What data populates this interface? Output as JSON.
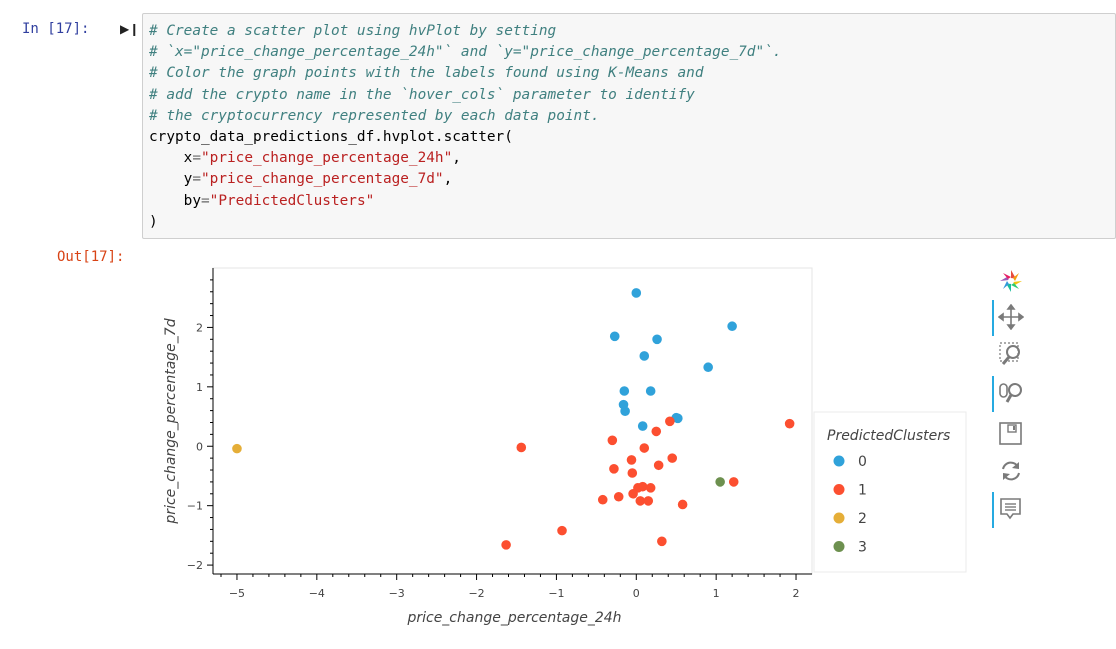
{
  "cell": {
    "in_prompt": "In [17]:",
    "out_prompt": "Out[17]:",
    "code_lines": [
      [
        {
          "t": "# Create a scatter plot using hvPlot by setting",
          "c": "cm"
        }
      ],
      [
        {
          "t": "# `x=\"price_change_percentage_24h\"` and `y=\"price_change_percentage_7d\"`.",
          "c": "cm"
        }
      ],
      [
        {
          "t": "# Color the graph points with the labels found using K-Means and",
          "c": "cm"
        }
      ],
      [
        {
          "t": "# add the crypto name in the `hover_cols` parameter to identify",
          "c": "cm"
        }
      ],
      [
        {
          "t": "# the cryptocurrency represented by each data point.",
          "c": "cm"
        }
      ],
      [
        {
          "t": "crypto_data_predictions_df.hvplot.scatter(",
          "c": ""
        }
      ],
      [
        {
          "t": "    x",
          "c": ""
        },
        {
          "t": "=",
          "c": "op"
        },
        {
          "t": "\"price_change_percentage_24h\"",
          "c": "st"
        },
        {
          "t": ",",
          "c": ""
        }
      ],
      [
        {
          "t": "    y",
          "c": ""
        },
        {
          "t": "=",
          "c": "op"
        },
        {
          "t": "\"price_change_percentage_7d\"",
          "c": "st"
        },
        {
          "t": ",",
          "c": ""
        }
      ],
      [
        {
          "t": "    by",
          "c": ""
        },
        {
          "t": "=",
          "c": "op"
        },
        {
          "t": "\"PredictedClusters\"",
          "c": "st"
        }
      ],
      [
        {
          "t": ")",
          "c": ""
        }
      ]
    ]
  },
  "toolbar": {
    "tools": [
      {
        "name": "bokeh-logo-icon",
        "active": false
      },
      {
        "name": "pan-tool-icon",
        "active": true
      },
      {
        "name": "box-zoom-tool-icon",
        "active": false
      },
      {
        "name": "wheel-zoom-tool-icon",
        "active": true
      },
      {
        "name": "save-tool-icon",
        "active": false
      },
      {
        "name": "reset-tool-icon",
        "active": false
      },
      {
        "name": "hover-tool-icon",
        "active": true
      }
    ]
  },
  "chart_data": {
    "type": "scatter",
    "xlabel": "price_change_percentage_24h",
    "ylabel": "price_change_percentage_7d",
    "xlim": [
      -5.3,
      2.2
    ],
    "ylim": [
      -2.15,
      3.0
    ],
    "xticks": [
      -5,
      -4,
      -3,
      -2,
      -1,
      0,
      1,
      2
    ],
    "yticks": [
      -2,
      -1,
      0,
      1,
      2
    ],
    "grid": false,
    "legend": {
      "title": "PredictedClusters",
      "placement": "right"
    },
    "series": [
      {
        "name": "0",
        "color": "#30a2da",
        "points": [
          [
            0.0,
            2.58
          ],
          [
            -0.27,
            1.85
          ],
          [
            0.26,
            1.8
          ],
          [
            1.2,
            2.02
          ],
          [
            0.1,
            1.52
          ],
          [
            0.9,
            1.33
          ],
          [
            -0.15,
            0.93
          ],
          [
            0.18,
            0.93
          ],
          [
            -0.16,
            0.7
          ],
          [
            -0.14,
            0.59
          ],
          [
            0.5,
            0.48
          ],
          [
            0.52,
            0.47
          ],
          [
            0.08,
            0.34
          ]
        ]
      },
      {
        "name": "1",
        "color": "#fc4f30",
        "points": [
          [
            -1.44,
            -0.02
          ],
          [
            -0.3,
            0.1
          ],
          [
            0.25,
            0.25
          ],
          [
            0.42,
            0.42
          ],
          [
            1.92,
            0.38
          ],
          [
            0.1,
            -0.03
          ],
          [
            -0.06,
            -0.23
          ],
          [
            0.45,
            -0.2
          ],
          [
            -0.28,
            -0.38
          ],
          [
            0.28,
            -0.32
          ],
          [
            -0.05,
            -0.45
          ],
          [
            0.02,
            -0.7
          ],
          [
            0.08,
            -0.68
          ],
          [
            0.18,
            -0.7
          ],
          [
            1.22,
            -0.6
          ],
          [
            -0.04,
            -0.8
          ],
          [
            -0.22,
            -0.85
          ],
          [
            -0.42,
            -0.9
          ],
          [
            0.05,
            -0.92
          ],
          [
            0.15,
            -0.92
          ],
          [
            0.58,
            -0.98
          ],
          [
            -0.93,
            -1.42
          ],
          [
            -1.63,
            -1.66
          ],
          [
            0.32,
            -1.6
          ]
        ]
      },
      {
        "name": "2",
        "color": "#e5ae38",
        "points": [
          [
            -5.0,
            -0.04
          ]
        ]
      },
      {
        "name": "3",
        "color": "#6d904f",
        "points": [
          [
            1.05,
            -0.6
          ]
        ]
      }
    ]
  }
}
